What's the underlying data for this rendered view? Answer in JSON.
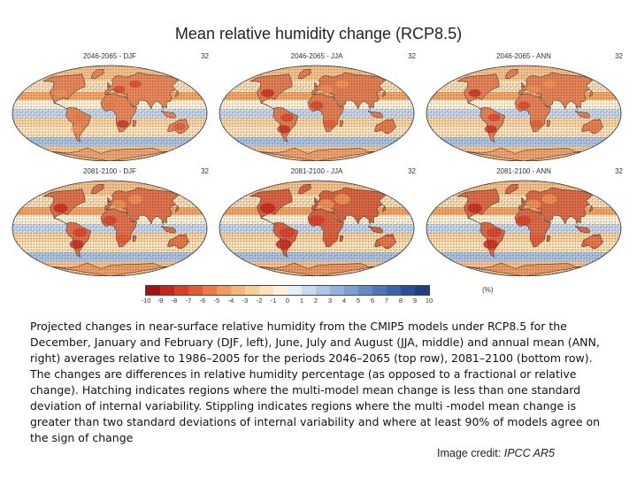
{
  "title": "Mean relative humidity change (RCP8.5)",
  "panels": [
    {
      "period": "2046-2065 - DJF",
      "models": "32",
      "dryness": 0.45
    },
    {
      "period": "2046-2065 - JJA",
      "models": "32",
      "dryness": 0.55
    },
    {
      "period": "2046-2065 - ANN",
      "models": "32",
      "dryness": 0.5
    },
    {
      "period": "2081-2100 - DJF",
      "models": "32",
      "dryness": 0.65
    },
    {
      "period": "2081-2100 - JJA",
      "models": "32",
      "dryness": 0.8
    },
    {
      "period": "2081-2100 - ANN",
      "models": "32",
      "dryness": 0.72
    }
  ],
  "colorbar": {
    "ticks": [
      "-10",
      "-9",
      "-8",
      "-7",
      "-6",
      "-5",
      "-4",
      "-3",
      "-2",
      "-1",
      "0",
      "1",
      "2",
      "3",
      "4",
      "5",
      "6",
      "7",
      "8",
      "9",
      "10"
    ],
    "colors": [
      "#a50f15",
      "#c4281c",
      "#d7402a",
      "#e35a35",
      "#ed7a43",
      "#f29a58",
      "#f6b677",
      "#f9cd98",
      "#fbe2bb",
      "#fdf1d8",
      "#e6eef8",
      "#c9daf0",
      "#adc6e6",
      "#92b2dc",
      "#7a9fd1",
      "#628bc6",
      "#4c77ba",
      "#3a63ab",
      "#2b509a",
      "#1f3e87"
    ],
    "unit": "(%)"
  },
  "caption": "Projected changes in near-surface relative humidity from the CMIP5 models under RCP8.5 for the December, January and February (DJF, left), June, July and August (JJA, middle) and annual mean (ANN, right) averages relative to 1986–2005 for the periods 2046–2065 (top row), 2081–2100 (bottom row). The changes are differences in relative humidity percentage (as opposed to a fractional or relative change). Hatching indicates regions where the multi-model mean change is less than one standard deviation of internal variability. Stippling indicates regions where the multi -model mean change is greater than two standard deviations of internal variability and where at least 90% of models agree on the sign of change",
  "credit": {
    "prefix": "Image credit: ",
    "source": "IPCC AR5"
  }
}
